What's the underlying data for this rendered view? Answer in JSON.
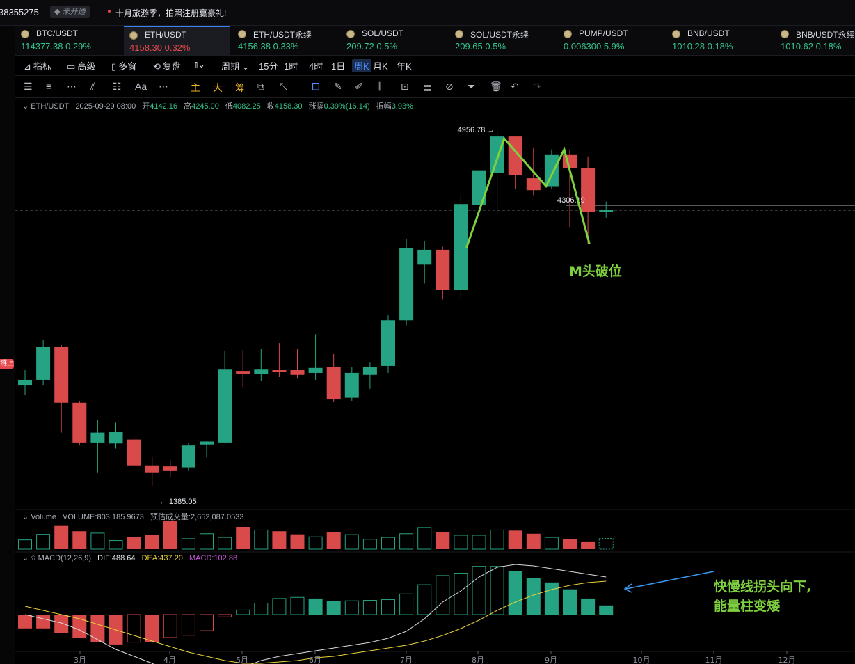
{
  "topbar": {
    "account": "38355275",
    "vip_label": "未开通",
    "promo": "十月旅游季，拍照注册赢豪礼!"
  },
  "tickers": [
    {
      "symbol": "BTC/USDT",
      "price": "114377.38",
      "change": "0.29%",
      "up": true,
      "active": false
    },
    {
      "symbol": "ETH/USDT",
      "price": "4158.30",
      "change": "0.32%",
      "up": false,
      "active": true
    },
    {
      "symbol": "ETH/USDT永续",
      "price": "4156.38",
      "change": "0.33%",
      "up": true,
      "active": false
    },
    {
      "symbol": "SOL/USDT",
      "price": "209.72",
      "change": "0.5%",
      "up": true,
      "active": false
    },
    {
      "symbol": "SOL/USDT永续",
      "price": "209.65",
      "change": "0.5%",
      "up": true,
      "active": false
    },
    {
      "symbol": "PUMP/USDT",
      "price": "0.006300",
      "change": "5.9%",
      "up": true,
      "active": false
    },
    {
      "symbol": "BNB/USDT",
      "price": "1010.28",
      "change": "0.18%",
      "up": true,
      "active": false
    },
    {
      "symbol": "BNB/USDT永续",
      "price": "1010.62",
      "change": "0.18%",
      "up": true,
      "active": false
    }
  ],
  "toolbar": {
    "indicators": "指标",
    "advanced": "高级",
    "multi": "多窗",
    "replay": "复盘",
    "period": "周期",
    "periods": [
      "15分",
      "1时",
      "4时",
      "1日",
      "周K",
      "月K",
      "年K"
    ],
    "selected_period": "周K"
  },
  "drawtools": {
    "main": "主",
    "large": "大",
    "chip": "筹",
    "text": "Aa"
  },
  "info": {
    "symbol": "ETH/USDT",
    "datetime": "2025-09-29 08:00",
    "open_label": "开",
    "open": "4142.16",
    "high_label": "高",
    "high": "4245.00",
    "low_label": "低",
    "low": "4082.25",
    "close_label": "收",
    "close": "4158.30",
    "chg_label": "涨幅",
    "chg": "0.39%(16.14)",
    "amp_label": "振幅",
    "amp": "3.93%"
  },
  "volume": {
    "label": "Volume",
    "vol": "VOLUME:803,185.9673",
    "est": "预估成交量:2,652,087.0533"
  },
  "macd": {
    "label": "MACD(12,26,9)",
    "dif": "DIF:488.64",
    "dea": "DEA:437.20",
    "macd": "MACD:102.88"
  },
  "annotations": {
    "high": "4956.78",
    "low": "1385.05",
    "level": "4306.19",
    "pattern": "M头破位",
    "macd_note_1": "快慢线拐头向下,",
    "macd_note_2": "能量柱变矮"
  },
  "left_badge": "链上",
  "colors": {
    "up": "#26a383",
    "down": "#d94a4b",
    "green_text": "#35c48d",
    "red_text": "#e5484d",
    "accent": "#3b82f6",
    "annot": "#7ed03f"
  },
  "chart_data": {
    "type": "candlestick",
    "interval": "weekly",
    "x_ticks": [
      "3月",
      "4月",
      "5月",
      "6月",
      "7月",
      "8月",
      "9月",
      "10月",
      "11月",
      "12月"
    ],
    "candles": [
      {
        "o": 2400,
        "h": 2550,
        "l": 2300,
        "c": 2450
      },
      {
        "o": 2450,
        "h": 2850,
        "l": 2400,
        "c": 2780
      },
      {
        "o": 2780,
        "h": 2800,
        "l": 1920,
        "c": 2220
      },
      {
        "o": 2220,
        "h": 2240,
        "l": 1790,
        "c": 1820
      },
      {
        "o": 1820,
        "h": 2050,
        "l": 1520,
        "c": 1920
      },
      {
        "o": 1810,
        "h": 2020,
        "l": 1760,
        "c": 1930
      },
      {
        "o": 1850,
        "h": 1890,
        "l": 1580,
        "c": 1590
      },
      {
        "o": 1590,
        "h": 1680,
        "l": 1385.05,
        "c": 1520
      },
      {
        "o": 1580,
        "h": 1640,
        "l": 1470,
        "c": 1540
      },
      {
        "o": 1570,
        "h": 1820,
        "l": 1540,
        "c": 1790
      },
      {
        "o": 1800,
        "h": 1840,
        "l": 1670,
        "c": 1830
      },
      {
        "o": 1820,
        "h": 2740,
        "l": 1810,
        "c": 2560
      },
      {
        "o": 2540,
        "h": 2750,
        "l": 2380,
        "c": 2510
      },
      {
        "o": 2510,
        "h": 2760,
        "l": 2440,
        "c": 2560
      },
      {
        "o": 2550,
        "h": 2820,
        "l": 2480,
        "c": 2530
      },
      {
        "o": 2550,
        "h": 2760,
        "l": 2470,
        "c": 2500
      },
      {
        "o": 2520,
        "h": 2910,
        "l": 2450,
        "c": 2570
      },
      {
        "o": 2580,
        "h": 2710,
        "l": 2230,
        "c": 2260
      },
      {
        "o": 2270,
        "h": 2580,
        "l": 2240,
        "c": 2520
      },
      {
        "o": 2500,
        "h": 2630,
        "l": 2360,
        "c": 2580
      },
      {
        "o": 2590,
        "h": 3100,
        "l": 2520,
        "c": 3050
      },
      {
        "o": 3050,
        "h": 3870,
        "l": 3000,
        "c": 3780
      },
      {
        "o": 3610,
        "h": 3850,
        "l": 3420,
        "c": 3760
      },
      {
        "o": 3760,
        "h": 3790,
        "l": 3260,
        "c": 3360
      },
      {
        "o": 3360,
        "h": 4320,
        "l": 3270,
        "c": 4220
      },
      {
        "o": 4210,
        "h": 4800,
        "l": 3960,
        "c": 4560
      },
      {
        "o": 4530,
        "h": 4956.78,
        "l": 4110,
        "c": 4900
      },
      {
        "o": 4900,
        "h": 4900,
        "l": 4370,
        "c": 4510
      },
      {
        "o": 4480,
        "h": 4790,
        "l": 4310,
        "c": 4360
      },
      {
        "o": 4400,
        "h": 4770,
        "l": 4370,
        "c": 4720
      },
      {
        "o": 4720,
        "h": 4770,
        "l": 3990,
        "c": 4580
      },
      {
        "o": 4580,
        "h": 4700,
        "l": 3820,
        "c": 4142.16
      },
      {
        "o": 4142.16,
        "h": 4245,
        "l": 4082.25,
        "c": 4158.3
      }
    ],
    "volume": [
      30,
      48,
      75,
      58,
      52,
      28,
      40,
      45,
      90,
      34,
      50,
      38,
      72,
      62,
      58,
      48,
      40,
      56,
      47,
      32,
      38,
      50,
      70,
      56,
      45,
      45,
      62,
      60,
      50,
      38,
      33,
      25,
      35
    ],
    "macd_hist": [
      -60,
      -60,
      -80,
      -100,
      -120,
      -130,
      -120,
      -120,
      -100,
      -90,
      -70,
      -10,
      20,
      50,
      70,
      75,
      70,
      60,
      60,
      62,
      65,
      90,
      130,
      170,
      180,
      210,
      210,
      190,
      160,
      140,
      110,
      70,
      40
    ],
    "levels": {
      "high": 4956.78,
      "low": 1385.05,
      "resistance": 4306.19,
      "current": 4158.3
    }
  }
}
